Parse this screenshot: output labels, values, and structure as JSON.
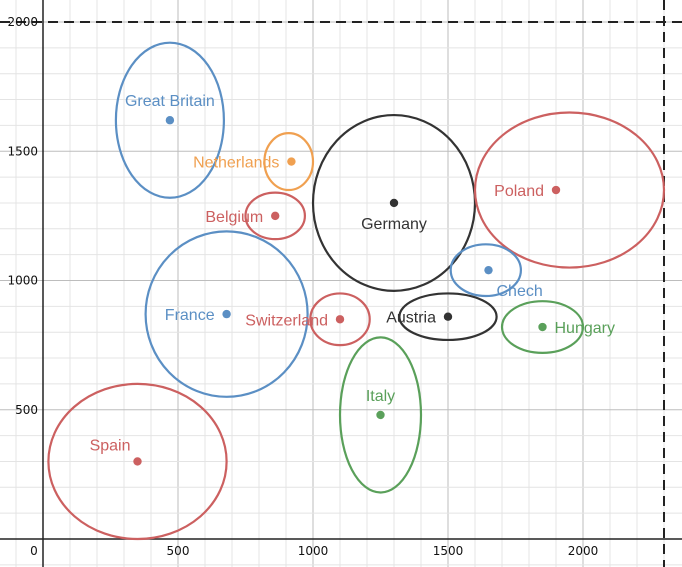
{
  "chart_data": {
    "type": "scatter",
    "title": "",
    "xlabel": "",
    "ylabel": "",
    "xlim": [
      -32,
      2300
    ],
    "ylim": [
      0,
      2000
    ],
    "grid": true,
    "x_ticks": [
      {
        "value": 0,
        "label": "0"
      },
      {
        "value": 500,
        "label": "500"
      },
      {
        "value": 1000,
        "label": "1000"
      },
      {
        "value": 1500,
        "label": "1500"
      },
      {
        "value": 2000,
        "label": "2000"
      }
    ],
    "y_ticks": [
      {
        "value": 500,
        "label": "500"
      },
      {
        "value": 1000,
        "label": "1000"
      },
      {
        "value": 1500,
        "label": "1500"
      },
      {
        "value": 2000,
        "label": "2000"
      }
    ],
    "colors": {
      "blue": "#5b8fc4",
      "red": "#cc6060",
      "orange": "#f0a050",
      "black": "#333333",
      "green": "#5aa05a"
    },
    "points": [
      {
        "name": "Great Britain",
        "x": 470,
        "y": 1620,
        "rx": 200,
        "ry": 300,
        "cx": 470,
        "cy": 1620,
        "color": "blue",
        "label_pos": "above"
      },
      {
        "name": "Netherlands",
        "x": 920,
        "y": 1460,
        "rx": 90,
        "ry": 110,
        "cx": 910,
        "cy": 1460,
        "color": "orange",
        "label_pos": "left"
      },
      {
        "name": "Belgium",
        "x": 860,
        "y": 1250,
        "rx": 110,
        "ry": 90,
        "cx": 860,
        "cy": 1250,
        "color": "red",
        "label_pos": "left"
      },
      {
        "name": "Germany",
        "x": 1300,
        "y": 1300,
        "rx": 300,
        "ry": 340,
        "cx": 1300,
        "cy": 1300,
        "color": "black",
        "label_pos": "below"
      },
      {
        "name": "Poland",
        "x": 1900,
        "y": 1350,
        "rx": 350,
        "ry": 300,
        "cx": 1950,
        "cy": 1350,
        "color": "red",
        "label_pos": "left"
      },
      {
        "name": "Chech",
        "x": 1650,
        "y": 1040,
        "rx": 130,
        "ry": 100,
        "cx": 1640,
        "cy": 1040,
        "color": "blue",
        "label_pos": "below-right"
      },
      {
        "name": "France",
        "x": 680,
        "y": 870,
        "rx": 300,
        "ry": 320,
        "cx": 680,
        "cy": 870,
        "color": "blue",
        "label_pos": "left"
      },
      {
        "name": "Switzerland",
        "x": 1100,
        "y": 850,
        "rx": 110,
        "ry": 100,
        "cx": 1100,
        "cy": 850,
        "color": "red",
        "label_pos": "left"
      },
      {
        "name": "Austria",
        "x": 1500,
        "y": 860,
        "rx": 180,
        "ry": 90,
        "cx": 1500,
        "cy": 860,
        "color": "black",
        "label_pos": "left"
      },
      {
        "name": "Hungary",
        "x": 1850,
        "y": 820,
        "rx": 150,
        "ry": 100,
        "cx": 1850,
        "cy": 820,
        "color": "green",
        "label_pos": "right"
      },
      {
        "name": "Italy",
        "x": 1250,
        "y": 480,
        "rx": 150,
        "ry": 300,
        "cx": 1250,
        "cy": 480,
        "color": "green",
        "label_pos": "above"
      },
      {
        "name": "Spain",
        "x": 350,
        "y": 300,
        "rx": 330,
        "ry": 300,
        "cx": 350,
        "cy": 300,
        "color": "red",
        "label_pos": "above-left"
      }
    ],
    "reference_lines": {
      "horizontal_y": 2000,
      "vertical_x": 2300,
      "style": "dashed"
    }
  }
}
